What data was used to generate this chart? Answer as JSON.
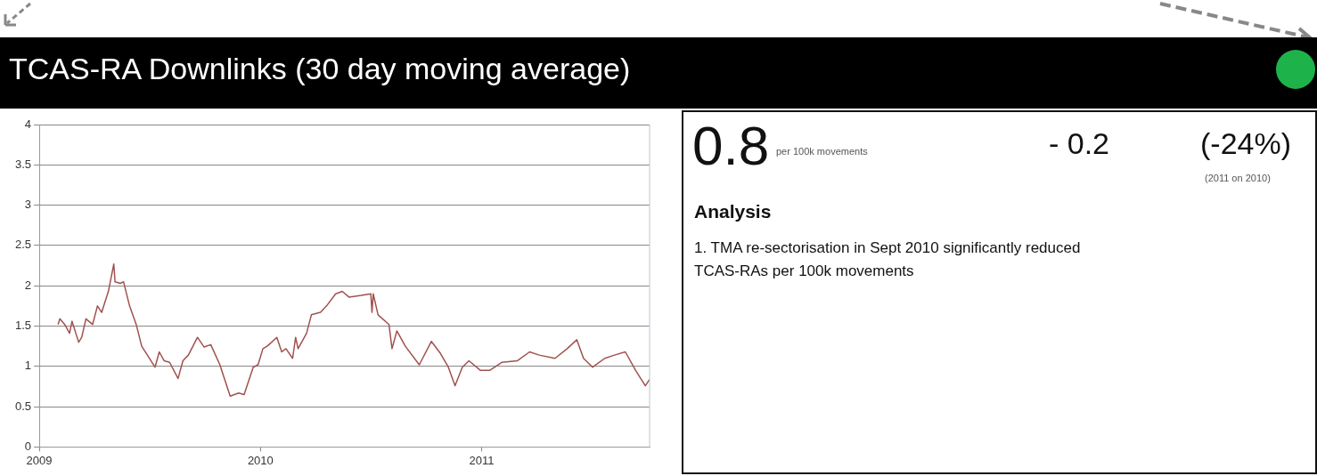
{
  "chart_data": [
    {
      "type": "line",
      "title": "TCAS-RA Downlinks (30 day moving average)",
      "xlim": [
        "2009-01-01",
        "2011-10-05"
      ],
      "xticks": [
        "2009",
        "2010",
        "2011"
      ],
      "ylim": [
        0,
        4
      ],
      "yticks": [
        0,
        0.5,
        1,
        1.5,
        2,
        2.5,
        3,
        3.5,
        4
      ],
      "grid": "y",
      "legend": false,
      "marker": "none",
      "line_style": "solid",
      "series": [
        {
          "color": "#a0524f",
          "x": [
            "2009-02-01",
            "2009-02-04",
            "2009-02-12",
            "2009-02-20",
            "2009-02-24",
            "2009-03-07",
            "2009-03-12",
            "2009-03-19",
            "2009-03-30",
            "2009-04-07",
            "2009-04-14",
            "2009-04-25",
            "2009-05-04",
            "2009-05-06",
            "2009-05-15",
            "2009-05-20",
            "2009-05-30",
            "2009-06-10",
            "2009-06-19",
            "2009-07-11",
            "2009-07-18",
            "2009-07-26",
            "2009-08-04",
            "2009-08-18",
            "2009-08-26",
            "2009-09-04",
            "2009-09-19",
            "2009-09-30",
            "2009-10-11",
            "2009-10-26",
            "2009-11-12",
            "2009-11-26",
            "2009-12-05",
            "2009-12-20",
            "2009-12-28",
            "2010-01-05",
            "2010-01-12",
            "2010-01-28",
            "2010-02-05",
            "2010-02-12",
            "2010-02-23",
            "2010-02-28",
            "2010-03-04",
            "2010-03-18",
            "2010-03-26",
            "2010-04-10",
            "2010-04-20",
            "2010-05-05",
            "2010-05-16",
            "2010-05-27",
            "2010-06-16",
            "2010-07-02",
            "2010-07-04",
            "2010-07-06",
            "2010-07-14",
            "2010-08-01",
            "2010-08-06",
            "2010-08-14",
            "2010-08-28",
            "2010-09-20",
            "2010-10-10",
            "2010-10-25",
            "2010-11-07",
            "2010-11-18",
            "2010-11-30",
            "2010-12-11",
            "2010-12-30",
            "2011-01-14",
            "2011-02-03",
            "2011-03-01",
            "2011-03-21",
            "2011-04-06",
            "2011-05-02",
            "2011-05-22",
            "2011-06-07",
            "2011-06-18",
            "2011-07-03",
            "2011-07-23",
            "2011-08-08",
            "2011-08-26",
            "2011-09-12",
            "2011-09-28",
            "2011-10-05"
          ],
          "values": [
            1.52,
            1.59,
            1.52,
            1.41,
            1.56,
            1.3,
            1.36,
            1.59,
            1.52,
            1.75,
            1.67,
            1.93,
            2.27,
            2.05,
            2.03,
            2.05,
            1.75,
            1.52,
            1.25,
            0.99,
            1.18,
            1.07,
            1.05,
            0.85,
            1.07,
            1.14,
            1.36,
            1.24,
            1.27,
            1.02,
            0.63,
            0.67,
            0.65,
            0.99,
            1.02,
            1.22,
            1.25,
            1.36,
            1.18,
            1.22,
            1.1,
            1.36,
            1.22,
            1.41,
            1.64,
            1.67,
            1.75,
            1.9,
            1.93,
            1.86,
            1.88,
            1.9,
            1.67,
            1.9,
            1.64,
            1.52,
            1.22,
            1.44,
            1.25,
            1.02,
            1.31,
            1.16,
            0.99,
            0.76,
            0.99,
            1.07,
            0.95,
            0.95,
            1.05,
            1.07,
            1.18,
            1.14,
            1.1,
            1.22,
            1.33,
            1.1,
            0.99,
            1.1,
            1.14,
            1.18,
            0.95,
            0.76,
            0.84
          ]
        }
      ]
    },
    {
      "type": "other",
      "title": "Analysis",
      "annotations": [
        "0.8",
        "per 100k movements",
        "- 0.2",
        "(-24%)",
        "(2011 on 2010)",
        "1.  TMA re-sectorisation in Sept 2010 significantly reduced TCAS-RAs per 100k movements"
      ]
    }
  ]
}
